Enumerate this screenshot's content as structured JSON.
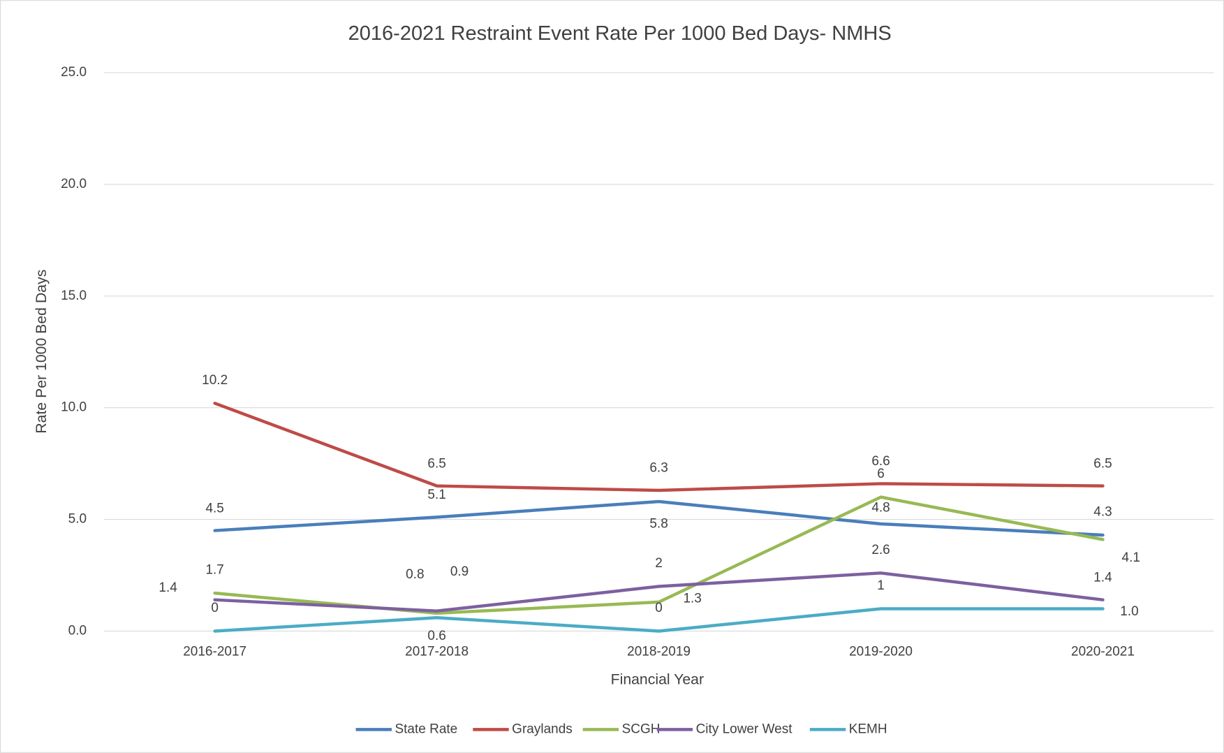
{
  "chart_data": {
    "type": "line",
    "title": "2016-2021 Restraint Event Rate Per 1000 Bed Days- NMHS",
    "x_label": "Financial Year",
    "y_label": "Rate Per 1000 Bed Days",
    "categories": [
      "2016-2017",
      "2017-2018",
      "2018-2019",
      "2019-2020",
      "2020-2021"
    ],
    "series": [
      {
        "name": "State Rate",
        "color": "#4a7ebb",
        "values": [
          4.5,
          5.1,
          5.8,
          4.8,
          4.3
        ]
      },
      {
        "name": "Graylands",
        "color": "#be4b48",
        "values": [
          10.2,
          6.5,
          6.3,
          6.6,
          6.5
        ]
      },
      {
        "name": "SCGH",
        "color": "#98b954",
        "values": [
          1.7,
          0.8,
          1.3,
          6,
          4.1
        ]
      },
      {
        "name": "City Lower West",
        "color": "#7d60a0",
        "values": [
          1.4,
          0.9,
          2,
          2.6,
          1.4
        ]
      },
      {
        "name": "KEMH",
        "color": "#4bacc6",
        "values": [
          0,
          0.6,
          0,
          1,
          1
        ],
        "value_labels": [
          "0",
          "0.6",
          "0",
          "1",
          "1.0"
        ]
      }
    ],
    "ylim": [
      0,
      25
    ],
    "yticks": [
      {
        "value": 0,
        "label": "0.0"
      },
      {
        "value": 5,
        "label": "5.0"
      },
      {
        "value": 10,
        "label": "10.0"
      },
      {
        "value": 15,
        "label": "15.0"
      },
      {
        "value": 20,
        "label": "20.0"
      },
      {
        "value": 25,
        "label": "25.0"
      }
    ],
    "grid": true,
    "legend": "bottom"
  }
}
